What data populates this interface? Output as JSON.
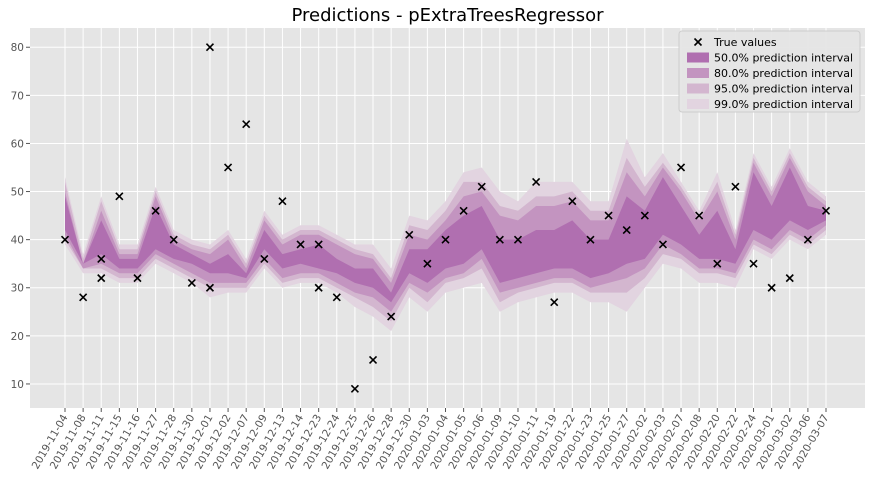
{
  "chart_data": {
    "type": "line",
    "title": "Predictions - pExtraTreesRegressor",
    "xlabel": "",
    "ylabel": "",
    "ylim": [
      5,
      84
    ],
    "yticks": [
      10,
      20,
      30,
      40,
      50,
      60,
      70,
      80
    ],
    "grid": true,
    "legend_position": "top-right",
    "categories": [
      "2019-11-04",
      "2019-11-08",
      "2019-11-11",
      "2019-11-15",
      "2019-11-16",
      "2019-11-27",
      "2019-11-28",
      "2019-11-30",
      "2019-12-01",
      "2019-12-02",
      "2019-12-07",
      "2019-12-09",
      "2019-12-13",
      "2019-12-14",
      "2019-12-23",
      "2019-12-24",
      "2019-12-25",
      "2019-12-26",
      "2019-12-28",
      "2019-12-30",
      "2020-01-03",
      "2020-01-04",
      "2020-01-05",
      "2020-01-06",
      "2020-01-09",
      "2020-01-10",
      "2020-01-11",
      "2020-01-19",
      "2020-01-22",
      "2020-01-23",
      "2020-01-25",
      "2020-01-27",
      "2020-02-02",
      "2020-02-03",
      "2020-02-07",
      "2020-02-08",
      "2020-02-20",
      "2020-02-22",
      "2020-02-24",
      "2020-03-01",
      "2020-03-02",
      "2020-03-06",
      "2020-03-07"
    ],
    "true_values": {
      "name": "True values",
      "points": [
        {
          "x": 0,
          "y": 40
        },
        {
          "x": 1,
          "y": 28
        },
        {
          "x": 2,
          "y": 36
        },
        {
          "x": 2,
          "y": 32
        },
        {
          "x": 3,
          "y": 49
        },
        {
          "x": 4,
          "y": 32
        },
        {
          "x": 5,
          "y": 46
        },
        {
          "x": 6,
          "y": 40
        },
        {
          "x": 7,
          "y": 31
        },
        {
          "x": 8,
          "y": 80
        },
        {
          "x": 8,
          "y": 30
        },
        {
          "x": 9,
          "y": 55
        },
        {
          "x": 10,
          "y": 64
        },
        {
          "x": 11,
          "y": 36
        },
        {
          "x": 12,
          "y": 48
        },
        {
          "x": 13,
          "y": 39
        },
        {
          "x": 14,
          "y": 39
        },
        {
          "x": 14,
          "y": 30
        },
        {
          "x": 15,
          "y": 28
        },
        {
          "x": 16,
          "y": 9
        },
        {
          "x": 17,
          "y": 15
        },
        {
          "x": 18,
          "y": 24
        },
        {
          "x": 19,
          "y": 41
        },
        {
          "x": 20,
          "y": 35
        },
        {
          "x": 21,
          "y": 40
        },
        {
          "x": 22,
          "y": 46
        },
        {
          "x": 23,
          "y": 51
        },
        {
          "x": 24,
          "y": 40
        },
        {
          "x": 25,
          "y": 40
        },
        {
          "x": 26,
          "y": 52
        },
        {
          "x": 27,
          "y": 27
        },
        {
          "x": 28,
          "y": 48
        },
        {
          "x": 29,
          "y": 40
        },
        {
          "x": 30,
          "y": 45
        },
        {
          "x": 31,
          "y": 42
        },
        {
          "x": 32,
          "y": 45
        },
        {
          "x": 33,
          "y": 39
        },
        {
          "x": 34,
          "y": 55
        },
        {
          "x": 35,
          "y": 45
        },
        {
          "x": 36,
          "y": 35
        },
        {
          "x": 37,
          "y": 51
        },
        {
          "x": 38,
          "y": 35
        },
        {
          "x": 39,
          "y": 30
        },
        {
          "x": 40,
          "y": 32
        },
        {
          "x": 41,
          "y": 40
        },
        {
          "x": 42,
          "y": 46
        }
      ]
    },
    "intervals": [
      {
        "name": "99.0% prediction interval",
        "color": "#e2d4e0",
        "lower": [
          39,
          33,
          33,
          31,
          31,
          35,
          33,
          31,
          28,
          29,
          29,
          34,
          30,
          31,
          31,
          29,
          26,
          24,
          21,
          28,
          25,
          29,
          30,
          31,
          25,
          27,
          28,
          29,
          29,
          27,
          27,
          25,
          30,
          35,
          34,
          31,
          31,
          30,
          38,
          36,
          40,
          38,
          41
        ],
        "upper": [
          53,
          37,
          49,
          39,
          39,
          51,
          42,
          40,
          39,
          42,
          36,
          46,
          41,
          43,
          43,
          41,
          39,
          39,
          34,
          45,
          44,
          48,
          54,
          55,
          50,
          48,
          52,
          52,
          52,
          48,
          48,
          61,
          53,
          58,
          52,
          46,
          54,
          42,
          58,
          51,
          59,
          52,
          49
        ]
      },
      {
        "name": "95.0% prediction interval",
        "color": "#d3b6cf",
        "lower": [
          40,
          34,
          34,
          32,
          32,
          36,
          34,
          32,
          30,
          30,
          30,
          35,
          31,
          32,
          32,
          30,
          28,
          26,
          23,
          30,
          27,
          31,
          32,
          34,
          27,
          29,
          30,
          31,
          31,
          29,
          29,
          29,
          32,
          37,
          36,
          33,
          33,
          32,
          39,
          37,
          41,
          39,
          42
        ],
        "upper": [
          52,
          36,
          48,
          38,
          38,
          50,
          41,
          39,
          38,
          41,
          35,
          45,
          40,
          42,
          42,
          40,
          38,
          37,
          32,
          43,
          42,
          46,
          52,
          52,
          47,
          46,
          49,
          49,
          50,
          46,
          46,
          57,
          51,
          56,
          51,
          45,
          52,
          41,
          57,
          50,
          58,
          51,
          48
        ]
      },
      {
        "name": "80.0% prediction interval",
        "color": "#c394c0",
        "lower": [
          41,
          34,
          35,
          33,
          33,
          37,
          35,
          33,
          31,
          31,
          31,
          36,
          32,
          33,
          33,
          31,
          29,
          28,
          25,
          31,
          29,
          32,
          33,
          36,
          29,
          30,
          31,
          32,
          32,
          30,
          31,
          32,
          34,
          39,
          37,
          34,
          34,
          33,
          40,
          38,
          42,
          40,
          43
        ],
        "upper": [
          50,
          35,
          46,
          37,
          37,
          49,
          40,
          38,
          37,
          40,
          34,
          44,
          39,
          41,
          41,
          39,
          37,
          36,
          31,
          41,
          40,
          44,
          49,
          50,
          45,
          44,
          47,
          47,
          48,
          44,
          44,
          54,
          49,
          55,
          50,
          44,
          50,
          40,
          56,
          49,
          57,
          50,
          47
        ]
      },
      {
        "name": "50.0% prediction interval",
        "color": "#b06fb0",
        "lower": [
          42,
          35,
          37,
          34,
          34,
          38,
          36,
          35,
          33,
          33,
          32,
          38,
          34,
          35,
          34,
          33,
          31,
          30,
          27,
          33,
          31,
          34,
          35,
          38,
          31,
          32,
          33,
          34,
          34,
          32,
          33,
          35,
          36,
          41,
          39,
          36,
          36,
          35,
          42,
          40,
          44,
          42,
          44
        ],
        "upper": [
          49,
          35,
          44,
          36,
          36,
          47,
          39,
          37,
          35,
          37,
          33,
          42,
          37,
          38,
          39,
          36,
          34,
          34,
          29,
          38,
          38,
          42,
          45,
          47,
          40,
          40,
          42,
          42,
          44,
          40,
          40,
          49,
          46,
          53,
          47,
          41,
          46,
          38,
          54,
          47,
          55,
          47,
          46
        ]
      }
    ]
  }
}
